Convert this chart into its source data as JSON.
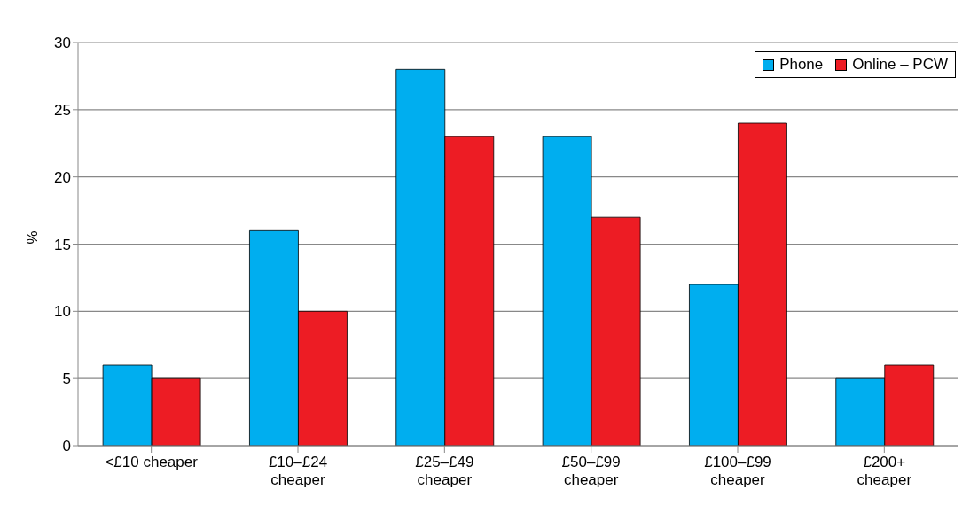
{
  "chart_data": {
    "type": "bar",
    "ylabel": "%",
    "categories": [
      "<£10 cheaper",
      "£10–£24\ncheaper",
      "£25–£49\ncheaper",
      "£50–£99\ncheaper",
      "£100–£99\ncheaper",
      "£200+\ncheaper"
    ],
    "series": [
      {
        "name": "Phone",
        "color": "#00aeef",
        "values": [
          6,
          16,
          28,
          23,
          12,
          5
        ]
      },
      {
        "name": "Online – PCW",
        "color": "#ed1c24",
        "values": [
          5,
          10,
          23,
          17,
          24,
          6
        ]
      }
    ],
    "ylim": [
      0,
      30
    ],
    "yticks": [
      0,
      5,
      10,
      15,
      20,
      25,
      30
    ],
    "grid": "y",
    "legend": "top right"
  }
}
